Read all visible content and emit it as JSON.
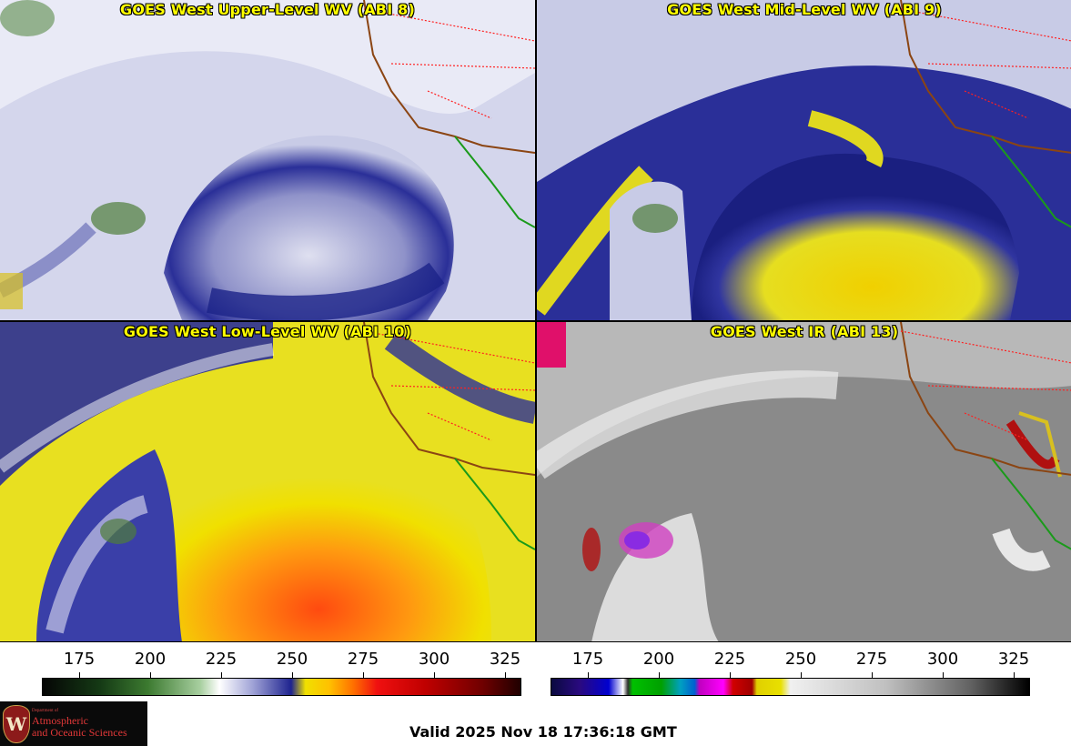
{
  "panels": [
    {
      "title": "GOES West Upper-Level WV (ABI 8)"
    },
    {
      "title": "GOES West Mid-Level WV (ABI 9)"
    },
    {
      "title": "GOES West Low-Level WV (ABI 10)"
    },
    {
      "title": "GOES West IR (ABI 13)"
    }
  ],
  "colorbars": {
    "wv": {
      "ticks": [
        "175",
        "200",
        "225",
        "250",
        "275",
        "300",
        "325"
      ]
    },
    "ir": {
      "ticks": [
        "175",
        "200",
        "225",
        "250",
        "275",
        "300",
        "325"
      ]
    }
  },
  "logo": {
    "dept": "Department of",
    "line1": "Atmospheric",
    "line2": "and Oceanic Sciences",
    "seal": "W"
  },
  "valid_time": "Valid 2025 Nov 18 17:36:18 GMT"
}
